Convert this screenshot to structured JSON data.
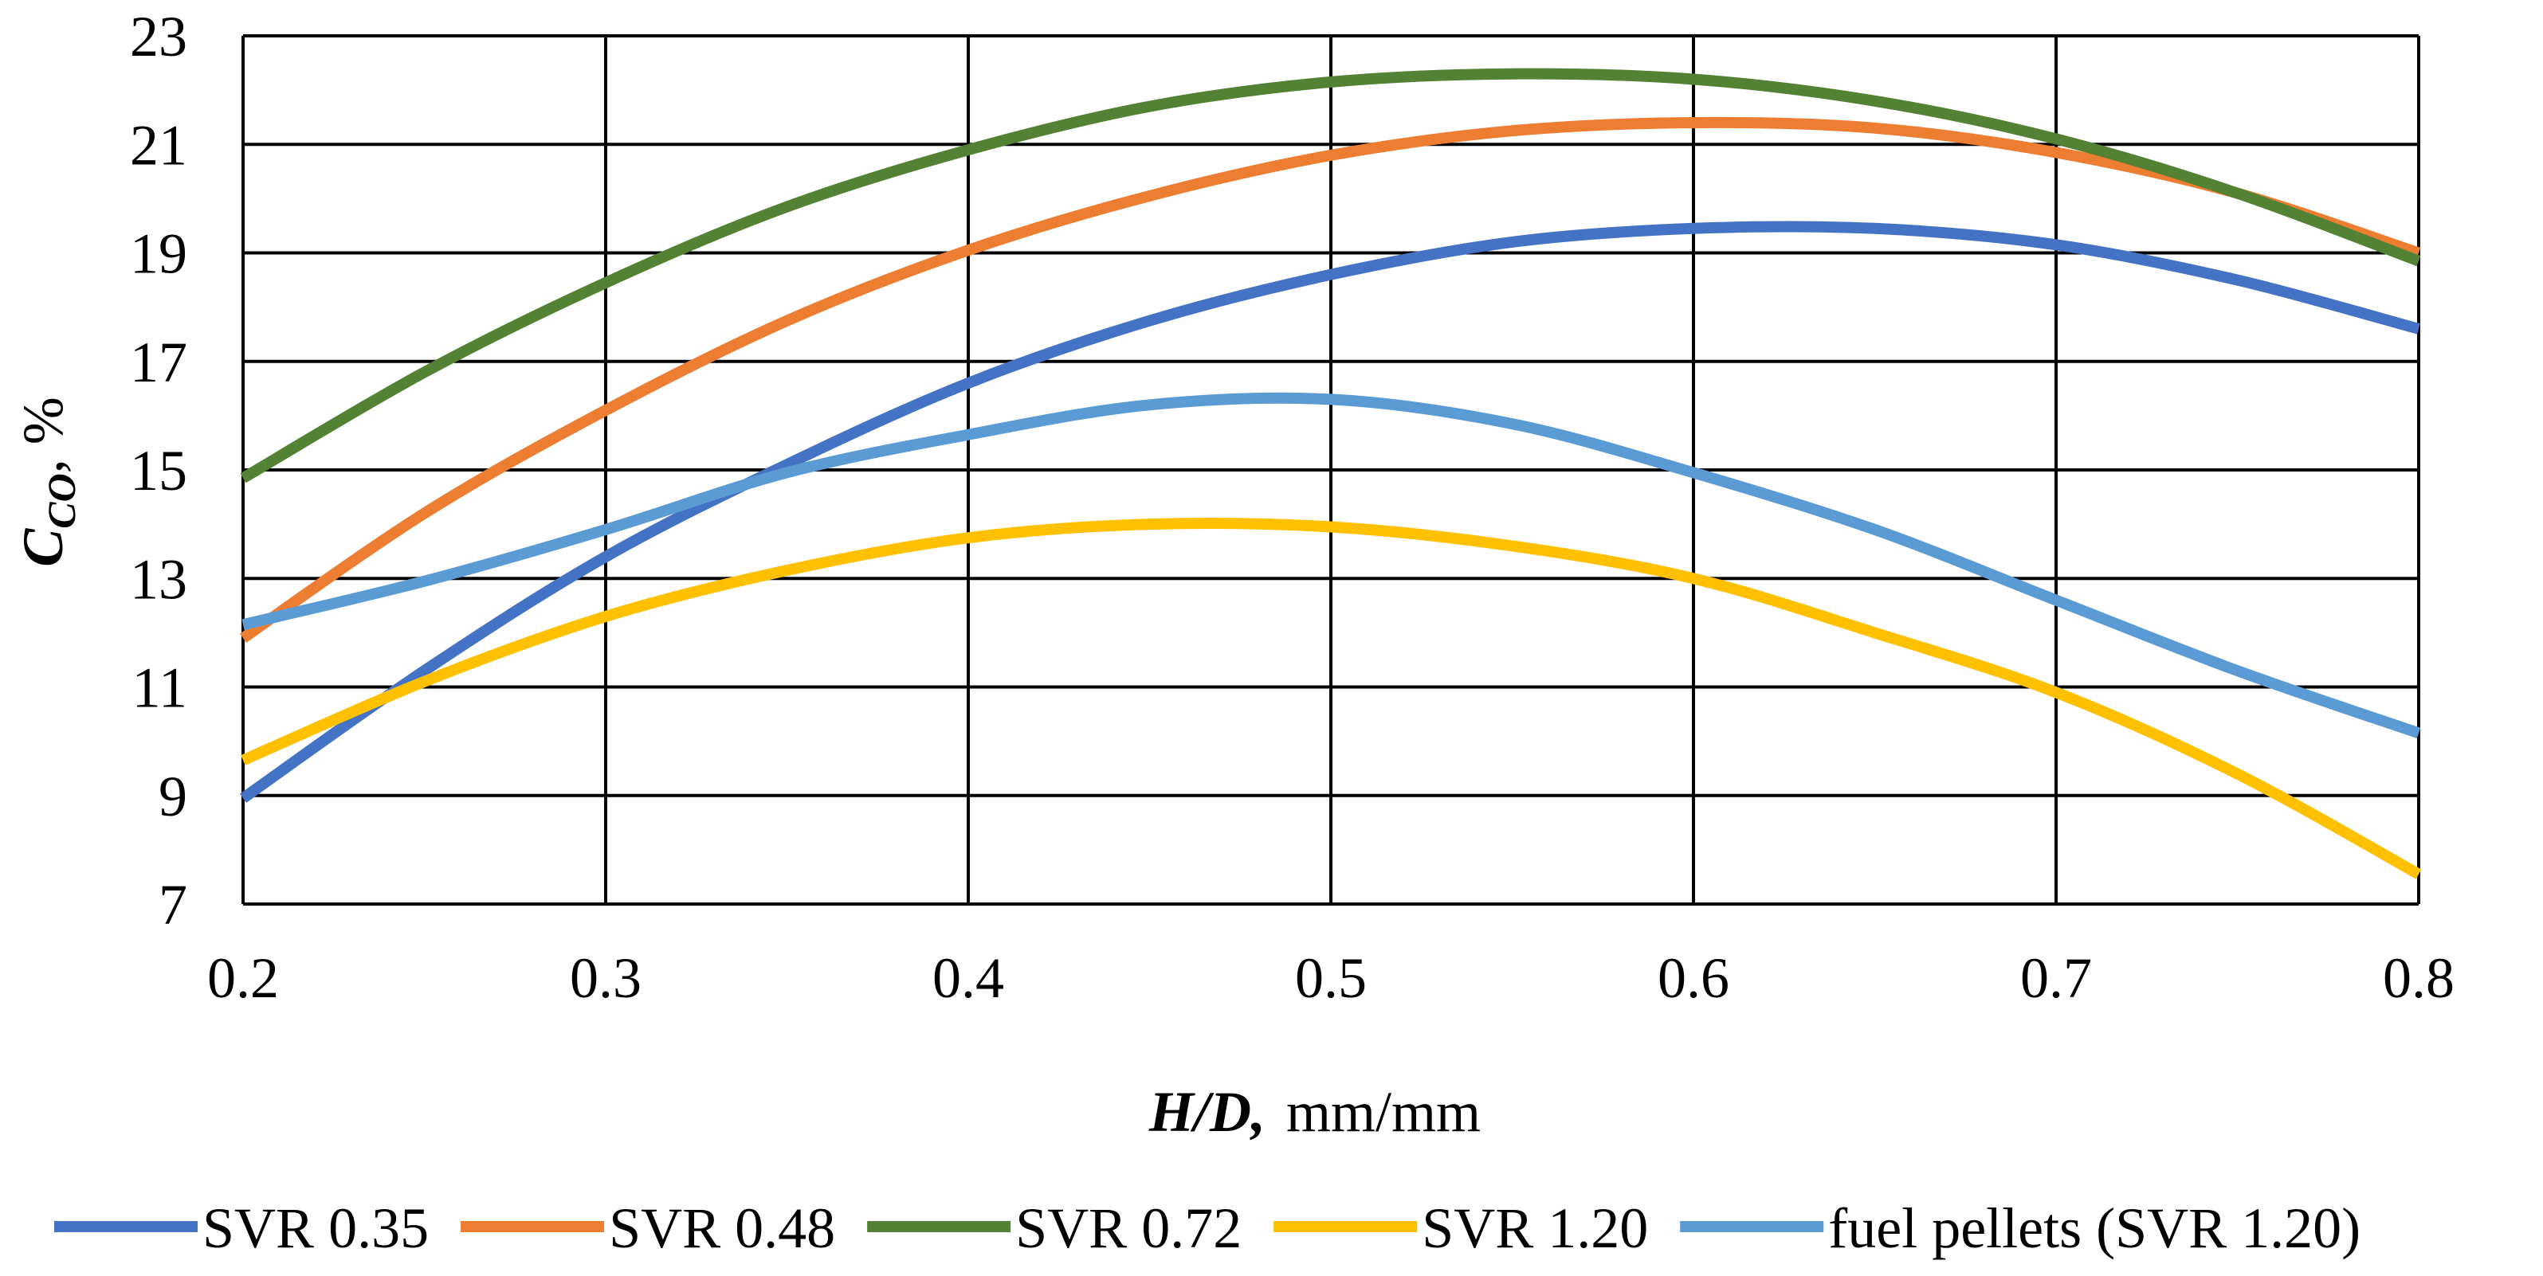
{
  "chart_data": {
    "type": "line",
    "title": "",
    "xlabel_italic": "H/D,",
    "xlabel_unit": "mm/mm",
    "ylabel_symbol": "C",
    "ylabel_subscript": "CO",
    "ylabel_unit": ", %",
    "xlim": [
      0.2,
      0.8
    ],
    "ylim": [
      7,
      23
    ],
    "xticks": [
      "0.2",
      "0.3",
      "0.4",
      "0.5",
      "0.6",
      "0.7",
      "0.8"
    ],
    "yticks": [
      "7",
      "9",
      "11",
      "13",
      "15",
      "17",
      "19",
      "21",
      "23"
    ],
    "grid": true,
    "legend_position": "bottom",
    "series": [
      {
        "name": "SVR 0.35",
        "color": "#4472C4",
        "x": [
          0.2,
          0.25,
          0.3,
          0.35,
          0.4,
          0.45,
          0.5,
          0.55,
          0.6,
          0.65,
          0.7,
          0.75,
          0.8
        ],
        "y": [
          8.95,
          11.3,
          13.4,
          15.1,
          16.6,
          17.75,
          18.6,
          19.2,
          19.45,
          19.45,
          19.15,
          18.5,
          17.6
        ]
      },
      {
        "name": "SVR 0.48",
        "color": "#ED7D31",
        "x": [
          0.2,
          0.25,
          0.3,
          0.35,
          0.4,
          0.45,
          0.5,
          0.55,
          0.6,
          0.65,
          0.7,
          0.75,
          0.8
        ],
        "y": [
          11.9,
          14.2,
          16.1,
          17.75,
          19.05,
          20.05,
          20.8,
          21.25,
          21.4,
          21.3,
          20.85,
          20.1,
          19.0
        ]
      },
      {
        "name": "SVR 0.72",
        "color": "#548235",
        "x": [
          0.2,
          0.25,
          0.3,
          0.35,
          0.4,
          0.45,
          0.5,
          0.55,
          0.6,
          0.65,
          0.7,
          0.75,
          0.8
        ],
        "y": [
          14.85,
          16.8,
          18.45,
          19.85,
          20.9,
          21.7,
          22.15,
          22.3,
          22.2,
          21.8,
          21.1,
          20.1,
          18.85
        ]
      },
      {
        "name": "SVR 1.20",
        "color": "#FFC000",
        "x": [
          0.2,
          0.25,
          0.3,
          0.35,
          0.4,
          0.45,
          0.5,
          0.55,
          0.6,
          0.65,
          0.7,
          0.75,
          0.8
        ],
        "y": [
          9.65,
          11.1,
          12.3,
          13.15,
          13.75,
          14.0,
          13.95,
          13.6,
          13.0,
          12.0,
          10.9,
          9.4,
          7.55
        ]
      },
      {
        "name": "fuel pellets (SVR 1.20)",
        "color": "#5B9BD5",
        "x": [
          0.2,
          0.25,
          0.3,
          0.35,
          0.4,
          0.45,
          0.5,
          0.55,
          0.6,
          0.65,
          0.7,
          0.75,
          0.8
        ],
        "y": [
          12.15,
          12.95,
          13.9,
          14.95,
          15.65,
          16.2,
          16.3,
          15.85,
          14.95,
          13.9,
          12.6,
          11.3,
          10.15
        ]
      }
    ]
  }
}
